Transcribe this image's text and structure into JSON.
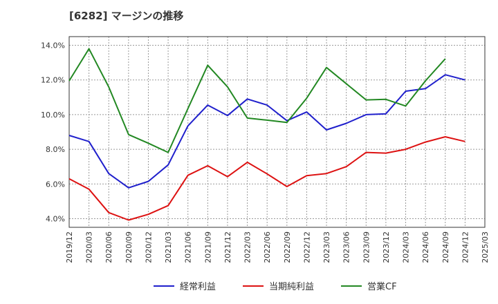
{
  "chart_data": {
    "type": "line",
    "title": "[6282]  マージンの推移",
    "x": [
      "2019/12",
      "2020/03",
      "2020/06",
      "2020/09",
      "2020/12",
      "2021/03",
      "2021/06",
      "2021/09",
      "2021/12",
      "2022/03",
      "2022/06",
      "2022/09",
      "2022/12",
      "2023/03",
      "2023/06",
      "2023/09",
      "2023/12",
      "2024/03",
      "2024/06",
      "2024/09",
      "2024/12",
      "2025/03"
    ],
    "yticks": [
      "4.0%",
      "6.0%",
      "8.0%",
      "10.0%",
      "12.0%",
      "14.0%"
    ],
    "ylim": [
      3.5,
      14.5
    ],
    "grid": true,
    "legend_position": "bottom",
    "series": [
      {
        "name": "経常利益",
        "color": "#1f1fcc",
        "values": [
          8.8,
          8.45,
          6.6,
          5.78,
          6.15,
          7.1,
          9.35,
          10.55,
          9.95,
          10.9,
          10.55,
          9.65,
          10.15,
          9.12,
          9.5,
          10.0,
          10.05,
          11.35,
          11.5,
          12.3,
          12.0,
          null
        ]
      },
      {
        "name": "当期純利益",
        "color": "#dd1111",
        "values": [
          6.3,
          5.7,
          4.35,
          3.92,
          4.25,
          4.75,
          6.5,
          7.05,
          6.42,
          7.25,
          6.58,
          5.85,
          6.48,
          6.6,
          7.0,
          7.82,
          7.78,
          8.0,
          8.42,
          8.72,
          8.45,
          null
        ]
      },
      {
        "name": "営業CF",
        "color": "#228822",
        "values": [
          11.95,
          13.8,
          11.6,
          8.85,
          8.35,
          7.82,
          10.35,
          12.85,
          11.6,
          9.8,
          9.68,
          9.55,
          10.95,
          12.72,
          11.78,
          10.85,
          10.88,
          10.5,
          11.95,
          13.22,
          null,
          null
        ]
      }
    ]
  }
}
